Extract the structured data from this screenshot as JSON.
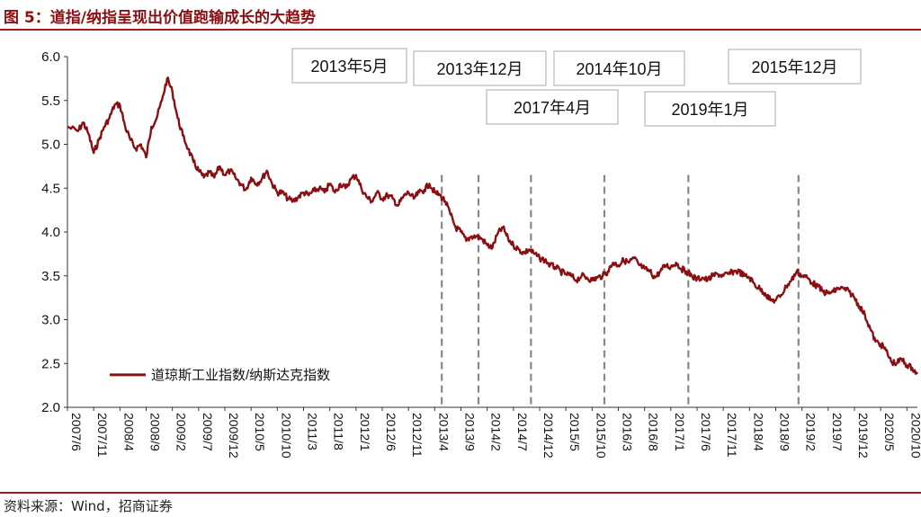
{
  "title": "图 5：道指/纳指呈现出价值跑输成长的大趋势",
  "source": "资料来源：Wind，招商证券",
  "chart_data": {
    "type": "line",
    "ylim": [
      2.0,
      6.0
    ],
    "yticks": [
      "2.0",
      "2.5",
      "3.0",
      "3.5",
      "4.0",
      "4.5",
      "5.0",
      "5.5",
      "6.0"
    ],
    "xlim": [
      "2007/6",
      "2020/12"
    ],
    "xticks": [
      "2007/6",
      "2007/11",
      "2008/4",
      "2008/9",
      "2009/2",
      "2009/7",
      "2009/12",
      "2010/5",
      "2010/10",
      "2011/3",
      "2011/8",
      "2012/1",
      "2012/6",
      "2012/11",
      "2013/4",
      "2013/9",
      "2014/2",
      "2014/7",
      "2014/12",
      "2015/5",
      "2015/10",
      "2016/3",
      "2016/8",
      "2017/1",
      "2017/6",
      "2017/11",
      "2018/4",
      "2018/9",
      "2019/2",
      "2019/7",
      "2019/12",
      "2020/5",
      "2020/10"
    ],
    "series": [
      {
        "name": "道琼斯工业指数/纳斯达克指数",
        "color": "#8b0f12",
        "points": [
          [
            "2007/6",
            5.2
          ],
          [
            "2007/8",
            5.15
          ],
          [
            "2007/9",
            5.25
          ],
          [
            "2007/10",
            5.12
          ],
          [
            "2007/11",
            4.9
          ],
          [
            "2007/12",
            5.05
          ],
          [
            "2008/1",
            5.2
          ],
          [
            "2008/2",
            5.3
          ],
          [
            "2008/3",
            5.45
          ],
          [
            "2008/4",
            5.45
          ],
          [
            "2008/5",
            5.2
          ],
          [
            "2008/6",
            5.05
          ],
          [
            "2008/7",
            4.95
          ],
          [
            "2008/8",
            5.0
          ],
          [
            "2008/9",
            4.85
          ],
          [
            "2008/10",
            5.2
          ],
          [
            "2008/11",
            5.3
          ],
          [
            "2008/12",
            5.5
          ],
          [
            "2009/1",
            5.75
          ],
          [
            "2009/2",
            5.6
          ],
          [
            "2009/3",
            5.3
          ],
          [
            "2009/4",
            5.1
          ],
          [
            "2009/5",
            4.95
          ],
          [
            "2009/6",
            4.8
          ],
          [
            "2009/7",
            4.7
          ],
          [
            "2009/8",
            4.62
          ],
          [
            "2009/9",
            4.68
          ],
          [
            "2009/10",
            4.62
          ],
          [
            "2009/11",
            4.75
          ],
          [
            "2009/12",
            4.65
          ],
          [
            "2010/1",
            4.7
          ],
          [
            "2010/2",
            4.62
          ],
          [
            "2010/3",
            4.55
          ],
          [
            "2010/4",
            4.48
          ],
          [
            "2010/5",
            4.62
          ],
          [
            "2010/6",
            4.55
          ],
          [
            "2010/7",
            4.6
          ],
          [
            "2010/8",
            4.7
          ],
          [
            "2010/9",
            4.55
          ],
          [
            "2010/10",
            4.45
          ],
          [
            "2010/11",
            4.45
          ],
          [
            "2010/12",
            4.38
          ],
          [
            "2011/1",
            4.35
          ],
          [
            "2011/2",
            4.4
          ],
          [
            "2011/3",
            4.45
          ],
          [
            "2011/4",
            4.42
          ],
          [
            "2011/5",
            4.47
          ],
          [
            "2011/6",
            4.5
          ],
          [
            "2011/7",
            4.45
          ],
          [
            "2011/8",
            4.55
          ],
          [
            "2011/9",
            4.45
          ],
          [
            "2011/10",
            4.55
          ],
          [
            "2011/11",
            4.5
          ],
          [
            "2011/12",
            4.6
          ],
          [
            "2012/1",
            4.65
          ],
          [
            "2012/2",
            4.5
          ],
          [
            "2012/3",
            4.4
          ],
          [
            "2012/4",
            4.35
          ],
          [
            "2012/5",
            4.45
          ],
          [
            "2012/6",
            4.38
          ],
          [
            "2012/7",
            4.42
          ],
          [
            "2012/8",
            4.38
          ],
          [
            "2012/9",
            4.3
          ],
          [
            "2012/10",
            4.4
          ],
          [
            "2012/11",
            4.45
          ],
          [
            "2012/12",
            4.38
          ],
          [
            "2013/1",
            4.45
          ],
          [
            "2013/2",
            4.48
          ],
          [
            "2013/3",
            4.55
          ],
          [
            "2013/4",
            4.45
          ],
          [
            "2013/5",
            4.42
          ],
          [
            "2013/6",
            4.35
          ],
          [
            "2013/7",
            4.2
          ],
          [
            "2013/8",
            4.05
          ],
          [
            "2013/9",
            4.0
          ],
          [
            "2013/10",
            3.9
          ],
          [
            "2013/11",
            3.95
          ],
          [
            "2013/12",
            3.95
          ],
          [
            "2014/1",
            3.92
          ],
          [
            "2014/2",
            3.85
          ],
          [
            "2014/3",
            3.82
          ],
          [
            "2014/4",
            3.98
          ],
          [
            "2014/5",
            4.05
          ],
          [
            "2014/6",
            3.92
          ],
          [
            "2014/7",
            3.85
          ],
          [
            "2014/8",
            3.8
          ],
          [
            "2014/9",
            3.76
          ],
          [
            "2014/10",
            3.8
          ],
          [
            "2014/11",
            3.75
          ],
          [
            "2014/12",
            3.7
          ],
          [
            "2015/1",
            3.68
          ],
          [
            "2015/2",
            3.62
          ],
          [
            "2015/3",
            3.6
          ],
          [
            "2015/4",
            3.55
          ],
          [
            "2015/5",
            3.52
          ],
          [
            "2015/6",
            3.5
          ],
          [
            "2015/7",
            3.45
          ],
          [
            "2015/8",
            3.5
          ],
          [
            "2015/9",
            3.48
          ],
          [
            "2015/10",
            3.45
          ],
          [
            "2015/11",
            3.48
          ],
          [
            "2015/12",
            3.5
          ],
          [
            "2016/1",
            3.55
          ],
          [
            "2016/2",
            3.65
          ],
          [
            "2016/3",
            3.62
          ],
          [
            "2016/4",
            3.68
          ],
          [
            "2016/5",
            3.65
          ],
          [
            "2016/6",
            3.7
          ],
          [
            "2016/7",
            3.62
          ],
          [
            "2016/8",
            3.58
          ],
          [
            "2016/9",
            3.55
          ],
          [
            "2016/10",
            3.48
          ],
          [
            "2016/11",
            3.55
          ],
          [
            "2016/12",
            3.62
          ],
          [
            "2017/1",
            3.6
          ],
          [
            "2017/2",
            3.65
          ],
          [
            "2017/3",
            3.58
          ],
          [
            "2017/4",
            3.55
          ],
          [
            "2017/5",
            3.5
          ],
          [
            "2017/6",
            3.46
          ],
          [
            "2017/7",
            3.48
          ],
          [
            "2017/8",
            3.45
          ],
          [
            "2017/9",
            3.5
          ],
          [
            "2017/10",
            3.52
          ],
          [
            "2017/11",
            3.5
          ],
          [
            "2017/12",
            3.52
          ],
          [
            "2018/1",
            3.55
          ],
          [
            "2018/2",
            3.55
          ],
          [
            "2018/3",
            3.5
          ],
          [
            "2018/4",
            3.48
          ],
          [
            "2018/5",
            3.4
          ],
          [
            "2018/6",
            3.35
          ],
          [
            "2018/7",
            3.3
          ],
          [
            "2018/8",
            3.22
          ],
          [
            "2018/9",
            3.22
          ],
          [
            "2018/10",
            3.28
          ],
          [
            "2018/11",
            3.38
          ],
          [
            "2018/12",
            3.45
          ],
          [
            "2019/1",
            3.55
          ],
          [
            "2019/2",
            3.5
          ],
          [
            "2019/3",
            3.48
          ],
          [
            "2019/4",
            3.42
          ],
          [
            "2019/5",
            3.38
          ],
          [
            "2019/6",
            3.32
          ],
          [
            "2019/7",
            3.3
          ],
          [
            "2019/8",
            3.32
          ],
          [
            "2019/9",
            3.36
          ],
          [
            "2019/10",
            3.35
          ],
          [
            "2019/11",
            3.32
          ],
          [
            "2019/12",
            3.25
          ],
          [
            "2020/1",
            3.15
          ],
          [
            "2020/2",
            3.05
          ],
          [
            "2020/3",
            2.9
          ],
          [
            "2020/4",
            2.75
          ],
          [
            "2020/5",
            2.72
          ],
          [
            "2020/6",
            2.65
          ],
          [
            "2020/7",
            2.52
          ],
          [
            "2020/8",
            2.5
          ],
          [
            "2020/9",
            2.55
          ],
          [
            "2020/10",
            2.48
          ],
          [
            "2020/11",
            2.45
          ],
          [
            "2020/12",
            2.38
          ]
        ]
      }
    ],
    "vlines": [
      "2013/5",
      "2013/12",
      "2014/10",
      "2015/12",
      "2017/4",
      "2019/1"
    ],
    "annotations": [
      "2013年5月",
      "2013年12月",
      "2014年10月",
      "2015年12月",
      "2017年4月",
      "2019年1月"
    ],
    "legend_position": "bottom-left"
  }
}
